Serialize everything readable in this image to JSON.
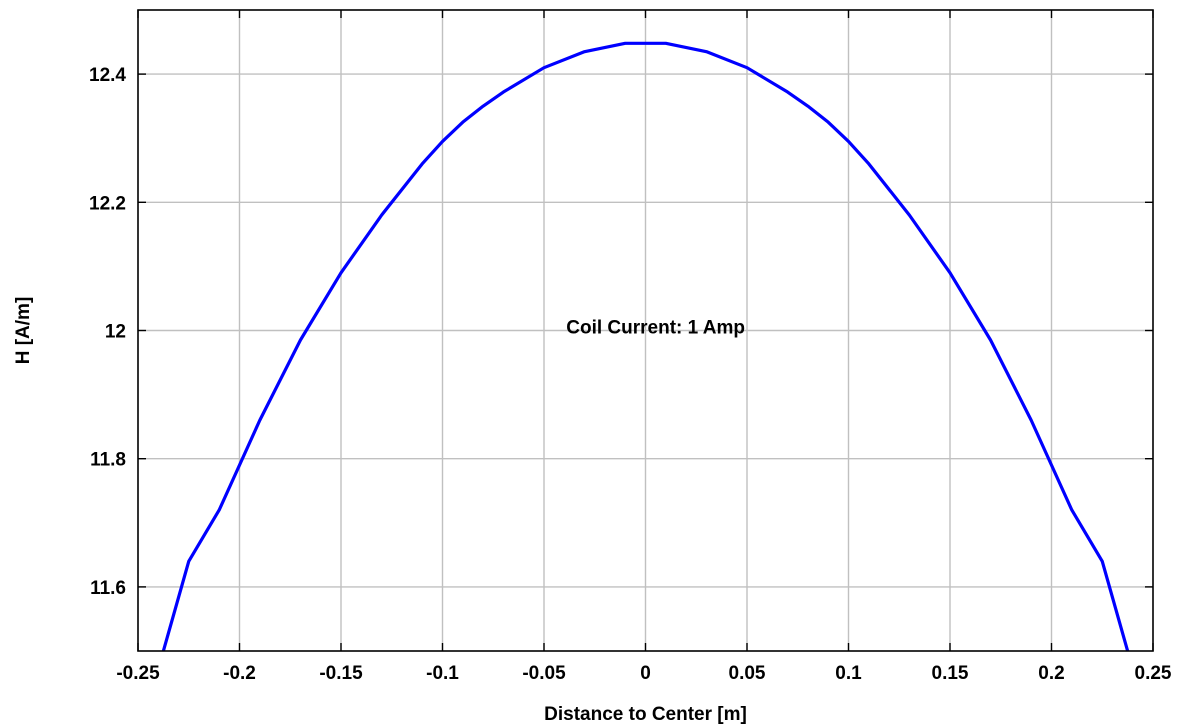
{
  "chart_data": {
    "type": "line",
    "title": "",
    "xlabel": "Distance to Center [m]",
    "ylabel": "H [A/m]",
    "xlim": [
      -0.25,
      0.25
    ],
    "ylim": [
      11.5,
      12.5
    ],
    "x_ticks": [
      -0.25,
      -0.2,
      -0.15,
      -0.1,
      -0.05,
      0,
      0.05,
      0.1,
      0.15,
      0.2,
      0.25
    ],
    "x_tick_labels": [
      "-0.25",
      "-0.2",
      "-0.15",
      "-0.1",
      "-0.05",
      "0",
      "0.05",
      "0.1",
      "0.15",
      "0.2",
      "0.25"
    ],
    "y_ticks": [
      11.6,
      11.8,
      12.0,
      12.2,
      12.4
    ],
    "y_tick_labels": [
      "11.6",
      "11.8",
      "12",
      "12.2",
      "12.4"
    ],
    "grid": true,
    "annotation": "Coil Current: 1 Amp",
    "series": [
      {
        "color": "#0000ff",
        "x": [
          -0.2375,
          -0.225,
          -0.21,
          -0.2,
          -0.19,
          -0.17,
          -0.15,
          -0.13,
          -0.11,
          -0.1,
          -0.09,
          -0.08,
          -0.07,
          -0.05,
          -0.03,
          -0.01,
          0,
          0.01,
          0.03,
          0.05,
          0.07,
          0.08,
          0.09,
          0.1,
          0.11,
          0.13,
          0.15,
          0.17,
          0.19,
          0.2,
          0.21,
          0.225,
          0.2375
        ],
        "y": [
          11.5,
          11.64,
          11.72,
          11.79,
          11.86,
          11.985,
          12.09,
          12.18,
          12.26,
          12.295,
          12.325,
          12.35,
          12.372,
          12.41,
          12.435,
          12.448,
          12.448,
          12.448,
          12.435,
          12.41,
          12.372,
          12.35,
          12.325,
          12.295,
          12.26,
          12.18,
          12.09,
          11.985,
          11.86,
          11.79,
          11.72,
          11.64,
          11.5
        ]
      }
    ]
  }
}
